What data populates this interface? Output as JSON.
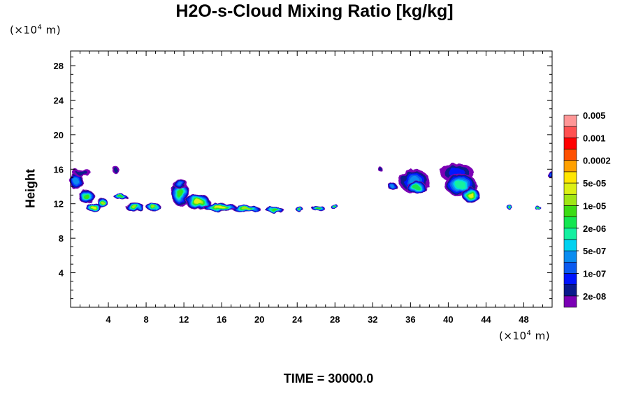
{
  "chart_data": {
    "type": "heatmap",
    "title": "H2O-s-Cloud Mixing Ratio [kg/kg]",
    "ylabel": "Height",
    "xlabel": "",
    "x_unit_text": "(×10",
    "x_unit_exp": "4",
    "x_unit_end": " m)",
    "y_unit_text": "(×10",
    "y_unit_exp": "4",
    "y_unit_end": " m)",
    "footer": "TIME = 30000.0",
    "xlim": [
      0,
      51
    ],
    "ylim": [
      0,
      29.7
    ],
    "x_ticks": [
      "4",
      "8",
      "12",
      "16",
      "20",
      "24",
      "28",
      "32",
      "36",
      "40",
      "44",
      "48"
    ],
    "x_tick_values": [
      4,
      8,
      12,
      16,
      20,
      24,
      28,
      32,
      36,
      40,
      44,
      48
    ],
    "y_ticks": [
      "4",
      "8",
      "12",
      "16",
      "20",
      "24",
      "28"
    ],
    "y_tick_values": [
      4,
      8,
      12,
      16,
      20,
      24,
      28
    ],
    "grid": false,
    "legend_position": "right",
    "colorbar": {
      "colors": [
        "#7b00b5",
        "#0a1a8c",
        "#0014ff",
        "#0a5af0",
        "#0a8cf0",
        "#00d2f0",
        "#14f0a0",
        "#14e650",
        "#3cdc14",
        "#a0e614",
        "#dcf014",
        "#ffe600",
        "#ffa000",
        "#ff5000",
        "#ff0000",
        "#ff5050",
        "#ff9696"
      ],
      "labels": [
        "2e-08",
        "1e-07",
        "5e-07",
        "2e-06",
        "1e-05",
        "5e-05",
        "0.0002",
        "0.001",
        "0.005"
      ]
    },
    "features": [
      {
        "x": 0.6,
        "y": 14.6,
        "rx": 0.7,
        "ry": 1.0,
        "level": 4
      },
      {
        "x": 1.2,
        "y": 15.6,
        "rx": 1.0,
        "ry": 0.4,
        "level": 1
      },
      {
        "x": 1.7,
        "y": 12.8,
        "rx": 0.9,
        "ry": 0.7,
        "level": 8
      },
      {
        "x": 2.4,
        "y": 11.6,
        "rx": 0.8,
        "ry": 0.5,
        "level": 10
      },
      {
        "x": 3.4,
        "y": 12.1,
        "rx": 0.5,
        "ry": 0.6,
        "level": 9
      },
      {
        "x": 4.8,
        "y": 15.9,
        "rx": 0.4,
        "ry": 0.4,
        "level": 1
      },
      {
        "x": 5.3,
        "y": 12.8,
        "rx": 0.7,
        "ry": 0.3,
        "level": 8
      },
      {
        "x": 6.8,
        "y": 11.6,
        "rx": 1.0,
        "ry": 0.5,
        "level": 9
      },
      {
        "x": 8.8,
        "y": 11.6,
        "rx": 0.8,
        "ry": 0.4,
        "level": 9
      },
      {
        "x": 11.6,
        "y": 13.2,
        "rx": 0.9,
        "ry": 1.5,
        "level": 8
      },
      {
        "x": 11.6,
        "y": 14.3,
        "rx": 0.8,
        "ry": 0.5,
        "level": 4
      },
      {
        "x": 13.5,
        "y": 12.2,
        "rx": 1.3,
        "ry": 0.9,
        "level": 10
      },
      {
        "x": 15.8,
        "y": 11.6,
        "rx": 1.8,
        "ry": 0.5,
        "level": 10
      },
      {
        "x": 18.6,
        "y": 11.4,
        "rx": 1.5,
        "ry": 0.4,
        "level": 9
      },
      {
        "x": 21.6,
        "y": 11.3,
        "rx": 1.0,
        "ry": 0.3,
        "level": 8
      },
      {
        "x": 24.2,
        "y": 11.4,
        "rx": 0.4,
        "ry": 0.3,
        "level": 8
      },
      {
        "x": 26.2,
        "y": 11.5,
        "rx": 0.7,
        "ry": 0.3,
        "level": 8
      },
      {
        "x": 27.9,
        "y": 11.7,
        "rx": 0.4,
        "ry": 0.3,
        "level": 8
      },
      {
        "x": 32.8,
        "y": 16.0,
        "rx": 0.25,
        "ry": 0.25,
        "level": 1
      },
      {
        "x": 34.1,
        "y": 14.0,
        "rx": 0.5,
        "ry": 0.4,
        "level": 4
      },
      {
        "x": 36.4,
        "y": 14.6,
        "rx": 1.6,
        "ry": 1.4,
        "level": 4
      },
      {
        "x": 36.6,
        "y": 13.9,
        "rx": 1.1,
        "ry": 0.7,
        "level": 7
      },
      {
        "x": 40.9,
        "y": 15.6,
        "rx": 1.8,
        "ry": 1.1,
        "level": 2
      },
      {
        "x": 41.3,
        "y": 14.2,
        "rx": 1.7,
        "ry": 1.3,
        "level": 6
      },
      {
        "x": 42.4,
        "y": 13.0,
        "rx": 0.9,
        "ry": 0.9,
        "level": 10
      },
      {
        "x": 46.5,
        "y": 11.6,
        "rx": 0.3,
        "ry": 0.25,
        "level": 8
      },
      {
        "x": 49.5,
        "y": 11.5,
        "rx": 0.3,
        "ry": 0.25,
        "level": 8
      },
      {
        "x": 50.8,
        "y": 15.4,
        "rx": 0.3,
        "ry": 0.4,
        "level": 3
      }
    ]
  }
}
